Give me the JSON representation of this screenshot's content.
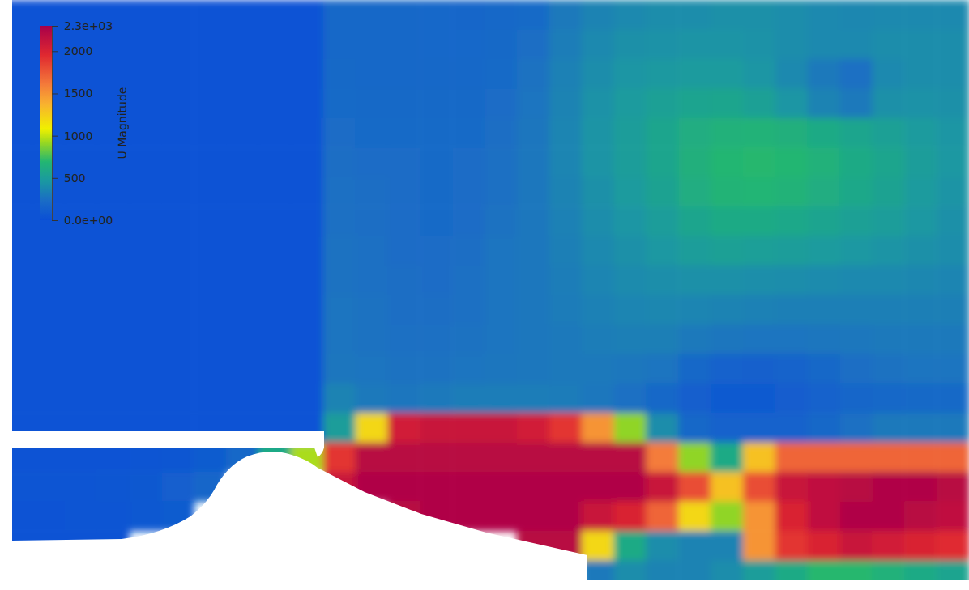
{
  "chart_data": {
    "type": "heatmap",
    "cells": [
      [
        20,
        20,
        20,
        20,
        20,
        20,
        20,
        20,
        20,
        20,
        200,
        200,
        200,
        190,
        180,
        200,
        220,
        300,
        350,
        380,
        400,
        400,
        420,
        420,
        400,
        380,
        370,
        380,
        380,
        380
      ],
      [
        20,
        20,
        20,
        20,
        20,
        20,
        20,
        20,
        20,
        20,
        200,
        200,
        200,
        190,
        190,
        210,
        240,
        320,
        380,
        420,
        430,
        440,
        440,
        430,
        400,
        380,
        380,
        400,
        400,
        400
      ],
      [
        20,
        20,
        20,
        20,
        20,
        20,
        20,
        20,
        20,
        20,
        210,
        200,
        200,
        200,
        200,
        220,
        260,
        340,
        400,
        450,
        470,
        480,
        480,
        450,
        380,
        300,
        250,
        380,
        400,
        400
      ],
      [
        20,
        20,
        20,
        20,
        20,
        20,
        20,
        20,
        20,
        20,
        220,
        210,
        210,
        210,
        210,
        230,
        270,
        350,
        430,
        480,
        520,
        550,
        560,
        520,
        450,
        350,
        300,
        420,
        430,
        420
      ],
      [
        20,
        20,
        20,
        20,
        20,
        20,
        20,
        20,
        20,
        20,
        230,
        220,
        220,
        220,
        220,
        240,
        280,
        360,
        440,
        500,
        560,
        620,
        650,
        660,
        640,
        600,
        560,
        520,
        480,
        450
      ],
      [
        20,
        20,
        20,
        20,
        20,
        20,
        20,
        20,
        20,
        20,
        240,
        230,
        230,
        220,
        230,
        250,
        290,
        360,
        440,
        500,
        560,
        640,
        690,
        700,
        690,
        650,
        600,
        560,
        500,
        460
      ],
      [
        20,
        20,
        20,
        20,
        20,
        20,
        20,
        20,
        20,
        20,
        250,
        240,
        230,
        220,
        230,
        250,
        290,
        350,
        420,
        480,
        540,
        620,
        670,
        680,
        660,
        620,
        580,
        540,
        480,
        440
      ],
      [
        20,
        20,
        20,
        20,
        20,
        20,
        20,
        20,
        20,
        20,
        250,
        240,
        230,
        220,
        230,
        260,
        290,
        340,
        400,
        450,
        500,
        560,
        600,
        600,
        580,
        550,
        520,
        500,
        460,
        420
      ],
      [
        20,
        20,
        20,
        20,
        20,
        20,
        20,
        20,
        20,
        20,
        260,
        250,
        230,
        230,
        240,
        270,
        290,
        330,
        380,
        420,
        460,
        500,
        520,
        510,
        500,
        480,
        460,
        440,
        420,
        400
      ],
      [
        20,
        20,
        20,
        20,
        20,
        20,
        20,
        20,
        20,
        20,
        260,
        250,
        240,
        230,
        250,
        270,
        290,
        320,
        360,
        390,
        410,
        420,
        420,
        410,
        400,
        390,
        380,
        380,
        370,
        360
      ],
      [
        20,
        20,
        20,
        20,
        20,
        20,
        20,
        20,
        20,
        20,
        270,
        260,
        240,
        240,
        250,
        270,
        290,
        310,
        340,
        360,
        370,
        360,
        350,
        340,
        330,
        330,
        330,
        330,
        330,
        330
      ],
      [
        20,
        20,
        20,
        20,
        20,
        20,
        20,
        20,
        20,
        20,
        270,
        260,
        250,
        250,
        260,
        270,
        290,
        300,
        320,
        330,
        330,
        300,
        280,
        270,
        270,
        280,
        290,
        300,
        300,
        300
      ],
      [
        20,
        20,
        20,
        20,
        20,
        20,
        20,
        20,
        20,
        20,
        280,
        270,
        260,
        260,
        270,
        280,
        290,
        300,
        300,
        290,
        270,
        200,
        150,
        140,
        160,
        200,
        240,
        260,
        270,
        270
      ],
      [
        20,
        20,
        20,
        20,
        20,
        20,
        20,
        20,
        20,
        20,
        350,
        300,
        280,
        300,
        320,
        320,
        320,
        310,
        290,
        250,
        200,
        130,
        90,
        90,
        110,
        150,
        180,
        200,
        210,
        210
      ],
      [
        20,
        20,
        20,
        20,
        20,
        20,
        20,
        20,
        20,
        20,
        500,
        1200,
        2050,
        2100,
        2100,
        2100,
        2050,
        1900,
        1500,
        900,
        400,
        200,
        150,
        150,
        150,
        200,
        250,
        300,
        300,
        300
      ],
      [
        30,
        30,
        30,
        30,
        40,
        60,
        100,
        200,
        600,
        950,
        1900,
        2200,
        2200,
        2200,
        2200,
        2200,
        2200,
        2200,
        2200,
        2200,
        1600,
        900,
        600,
        1300,
        1700,
        1700,
        1700,
        1700,
        1700,
        1700
      ],
      [
        40,
        40,
        50,
        60,
        80,
        120,
        180,
        null,
        null,
        null,
        2100,
        2250,
        2250,
        2250,
        2250,
        2250,
        2250,
        2250,
        2250,
        2250,
        2100,
        1800,
        1300,
        1800,
        2100,
        2150,
        2200,
        2250,
        2250,
        2200
      ],
      [
        30,
        30,
        40,
        50,
        70,
        100,
        null,
        null,
        null,
        null,
        null,
        null,
        2200,
        2250,
        2250,
        2250,
        2250,
        2250,
        2100,
        2000,
        1700,
        1200,
        900,
        1500,
        2000,
        2150,
        2250,
        2250,
        2200,
        2150
      ],
      [
        30,
        30,
        30,
        30,
        null,
        null,
        null,
        null,
        null,
        null,
        null,
        null,
        null,
        null,
        null,
        null,
        2200,
        2200,
        1200,
        600,
        400,
        350,
        350,
        1500,
        1900,
        2000,
        2100,
        2050,
        2000,
        1950
      ],
      [
        null,
        null,
        null,
        null,
        null,
        null,
        null,
        null,
        null,
        null,
        null,
        null,
        null,
        null,
        null,
        null,
        null,
        null,
        300,
        400,
        350,
        350,
        400,
        500,
        600,
        700,
        700,
        650,
        600,
        550
      ]
    ],
    "colorbar": {
      "title": "U Magnitude",
      "range": [
        0,
        2300
      ],
      "ticks": [
        {
          "value": 0,
          "label": "0.0e+00"
        },
        500,
        1000,
        1500,
        2000,
        {
          "value": 2300,
          "label": "2.3e+03"
        }
      ]
    }
  }
}
